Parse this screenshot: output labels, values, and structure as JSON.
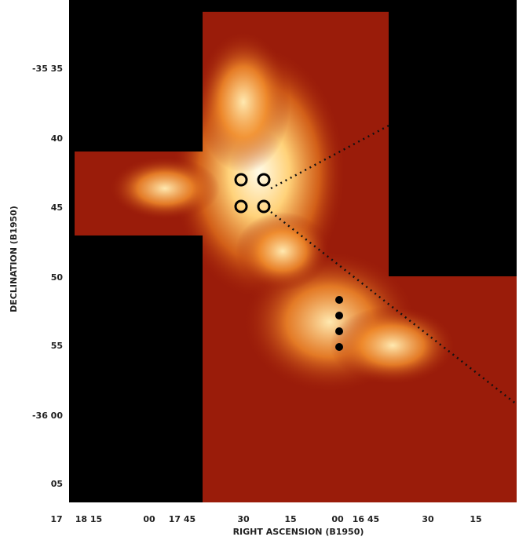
{
  "x_axis": {
    "title": "RIGHT ASCENSION (B1950)",
    "tick_labels": [
      "17",
      "18 15",
      "00",
      "17 45",
      "30",
      "15",
      "00",
      "16 45",
      "30",
      "15"
    ]
  },
  "y_axis": {
    "title": "DECLINATION (B1950)",
    "tick_labels": [
      "-35 35",
      "40",
      "45",
      "50",
      "55",
      "-36 00",
      "05"
    ]
  }
}
